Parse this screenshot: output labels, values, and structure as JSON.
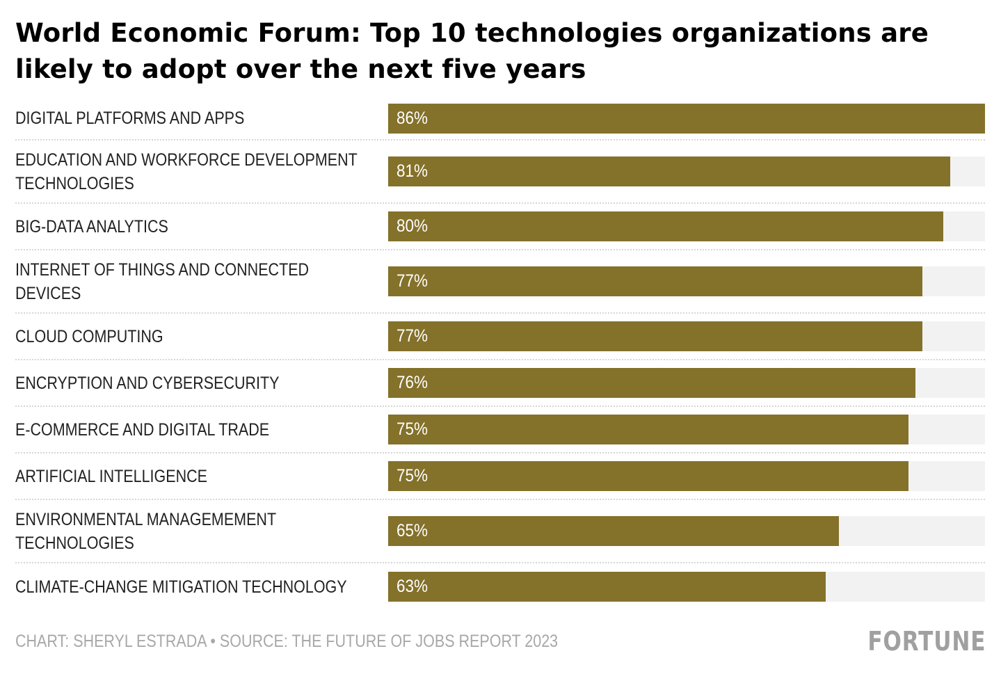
{
  "chart_data": {
    "type": "bar",
    "orientation": "horizontal",
    "title": "World Economic Forum: Top 10 technologies organizations are likely to adopt over the next five years",
    "xlabel": "",
    "ylabel": "",
    "xlim": [
      0,
      86
    ],
    "grid": false,
    "categories": [
      "DIGITAL PLATFORMS AND APPS",
      "EDUCATION AND WORKFORCE DEVELOPMENT TECHNOLOGIES",
      "BIG-DATA ANALYTICS",
      "INTERNET OF THINGS AND CONNECTED DEVICES",
      "CLOUD COMPUTING",
      "ENCRYPTION AND CYBERSECURITY",
      "E-COMMERCE AND DIGITAL TRADE",
      "ARTIFICIAL INTELLIGENCE",
      "ENVIRONMENTAL MANAGEMEMENT TECHNOLOGIES",
      "CLIMATE-CHANGE MITIGATION TECHNOLOGY"
    ],
    "values": [
      86,
      81,
      80,
      77,
      77,
      76,
      75,
      75,
      65,
      63
    ],
    "data_labels": [
      "86%",
      "81%",
      "80%",
      "77%",
      "77%",
      "76%",
      "75%",
      "75%",
      "65%",
      "63%"
    ],
    "label_lines": [
      [
        "DIGITAL PLATFORMS AND APPS"
      ],
      [
        "EDUCATION AND WORKFORCE DEVELOPMENT",
        "TECHNOLOGIES"
      ],
      [
        "BIG-DATA ANALYTICS"
      ],
      [
        "INTERNET OF THINGS AND CONNECTED",
        "DEVICES"
      ],
      [
        "CLOUD COMPUTING"
      ],
      [
        "ENCRYPTION AND CYBERSECURITY"
      ],
      [
        "E-COMMERCE AND DIGITAL TRADE"
      ],
      [
        "ARTIFICIAL INTELLIGENCE"
      ],
      [
        "ENVIRONMENTAL MANAGEMEMENT",
        "TECHNOLOGIES"
      ],
      [
        "CLIMATE-CHANGE MITIGATION TECHNOLOGY"
      ]
    ],
    "colors": {
      "bar": "#84712a",
      "track": "#f2f2f2",
      "bar_label": "#ffffff"
    }
  },
  "footer": {
    "credit": "CHART: SHERYL ESTRADA • SOURCE: THE FUTURE OF JOBS REPORT 2023",
    "logo": "FORTUNE"
  }
}
